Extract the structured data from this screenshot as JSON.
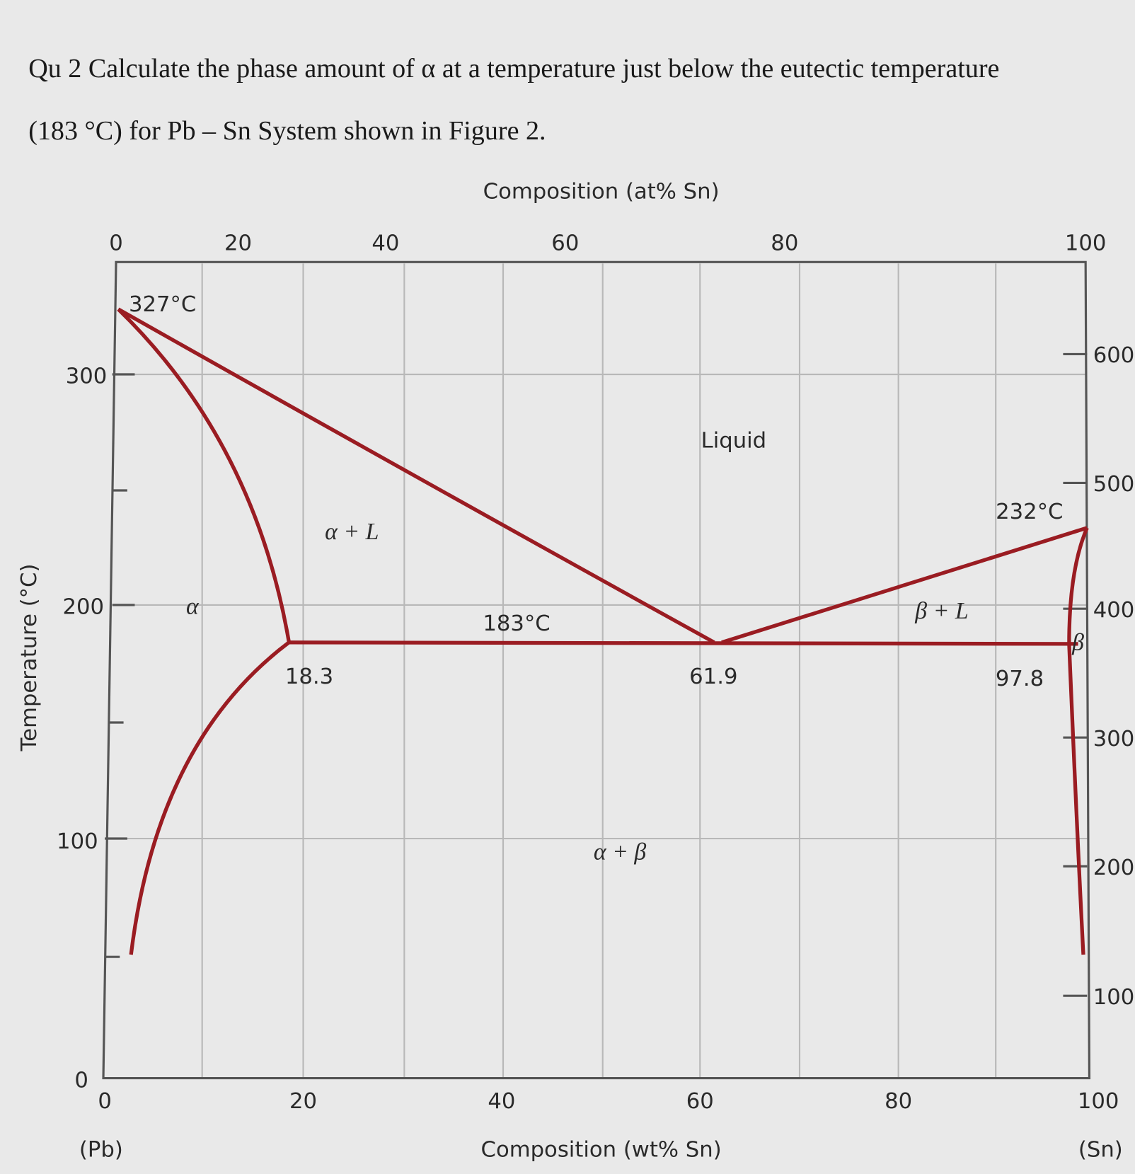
{
  "question": {
    "lines": [
      "Qu 2 Calculate the phase amount of α at a temperature just below the eutectic temperature",
      "(183 °C) for Pb – Sn System shown in Figure 2."
    ]
  },
  "figure": {
    "top_axis_title": "Composition (at% Sn)",
    "top_ticks": [
      "0",
      "20",
      "40",
      "60",
      "80",
      "100"
    ],
    "bottom_axis_title": "Composition (wt% Sn)",
    "bottom_ticks": [
      "0",
      "20",
      "40",
      "60",
      "80",
      "100"
    ],
    "left_axis_title": "Temperature (°C)",
    "left_ticks": [
      "0",
      "100",
      "200",
      "300"
    ],
    "right_ticks": [
      "600",
      "500",
      "400",
      "300",
      "200",
      "100"
    ],
    "end_labels": [
      "(Pb)",
      "(Sn)"
    ],
    "region_labels": [
      "Liquid",
      "α + L",
      "β + L",
      "α + β",
      "α",
      "β"
    ],
    "point_labels": [
      "327°C",
      "232°C",
      "183°C",
      "18.3",
      "61.9",
      "97.8"
    ]
  }
}
